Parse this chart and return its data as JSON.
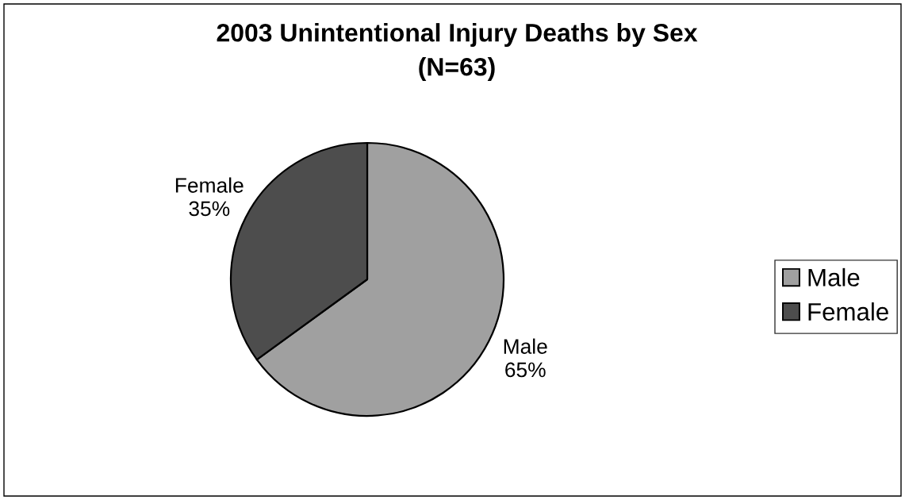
{
  "chart_data": {
    "type": "pie",
    "title": "2003 Unintentional Injury Deaths by Sex",
    "subtitle": "(N=63)",
    "categories": [
      "Male",
      "Female"
    ],
    "values": [
      65,
      35
    ],
    "colors": [
      "#a0a0a0",
      "#4d4d4d"
    ],
    "value_labels": [
      "Male\n65%",
      "Female\n35%"
    ],
    "legend": "right"
  }
}
